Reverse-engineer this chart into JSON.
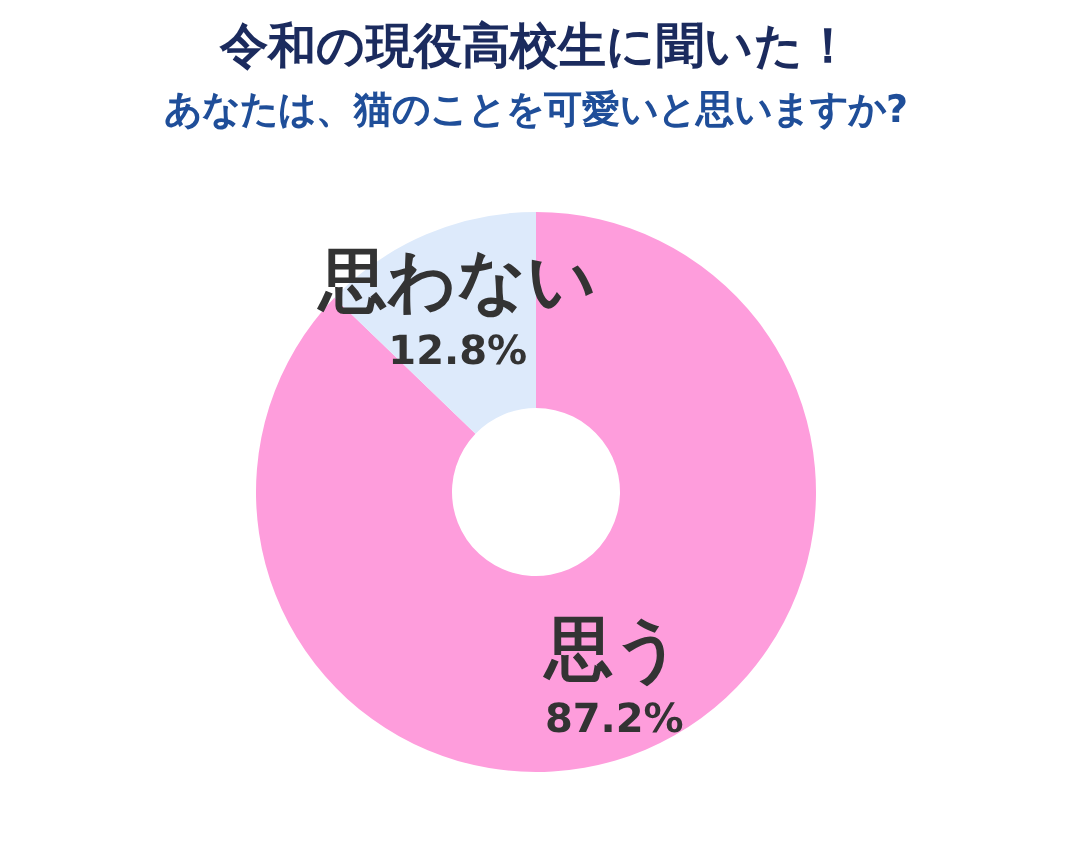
{
  "chart_data": {
    "type": "donut",
    "title": "令和の現役高校生に聞いた！",
    "subtitle": "あなたは、猫のことを可愛いと思いますか?",
    "categories": [
      "思う",
      "思わない"
    ],
    "values": [
      87.2,
      12.8
    ],
    "value_labels": [
      "87.2%",
      "12.8%"
    ],
    "colors": [
      "#fe9ddc",
      "#ddeafb"
    ],
    "legend": false
  }
}
